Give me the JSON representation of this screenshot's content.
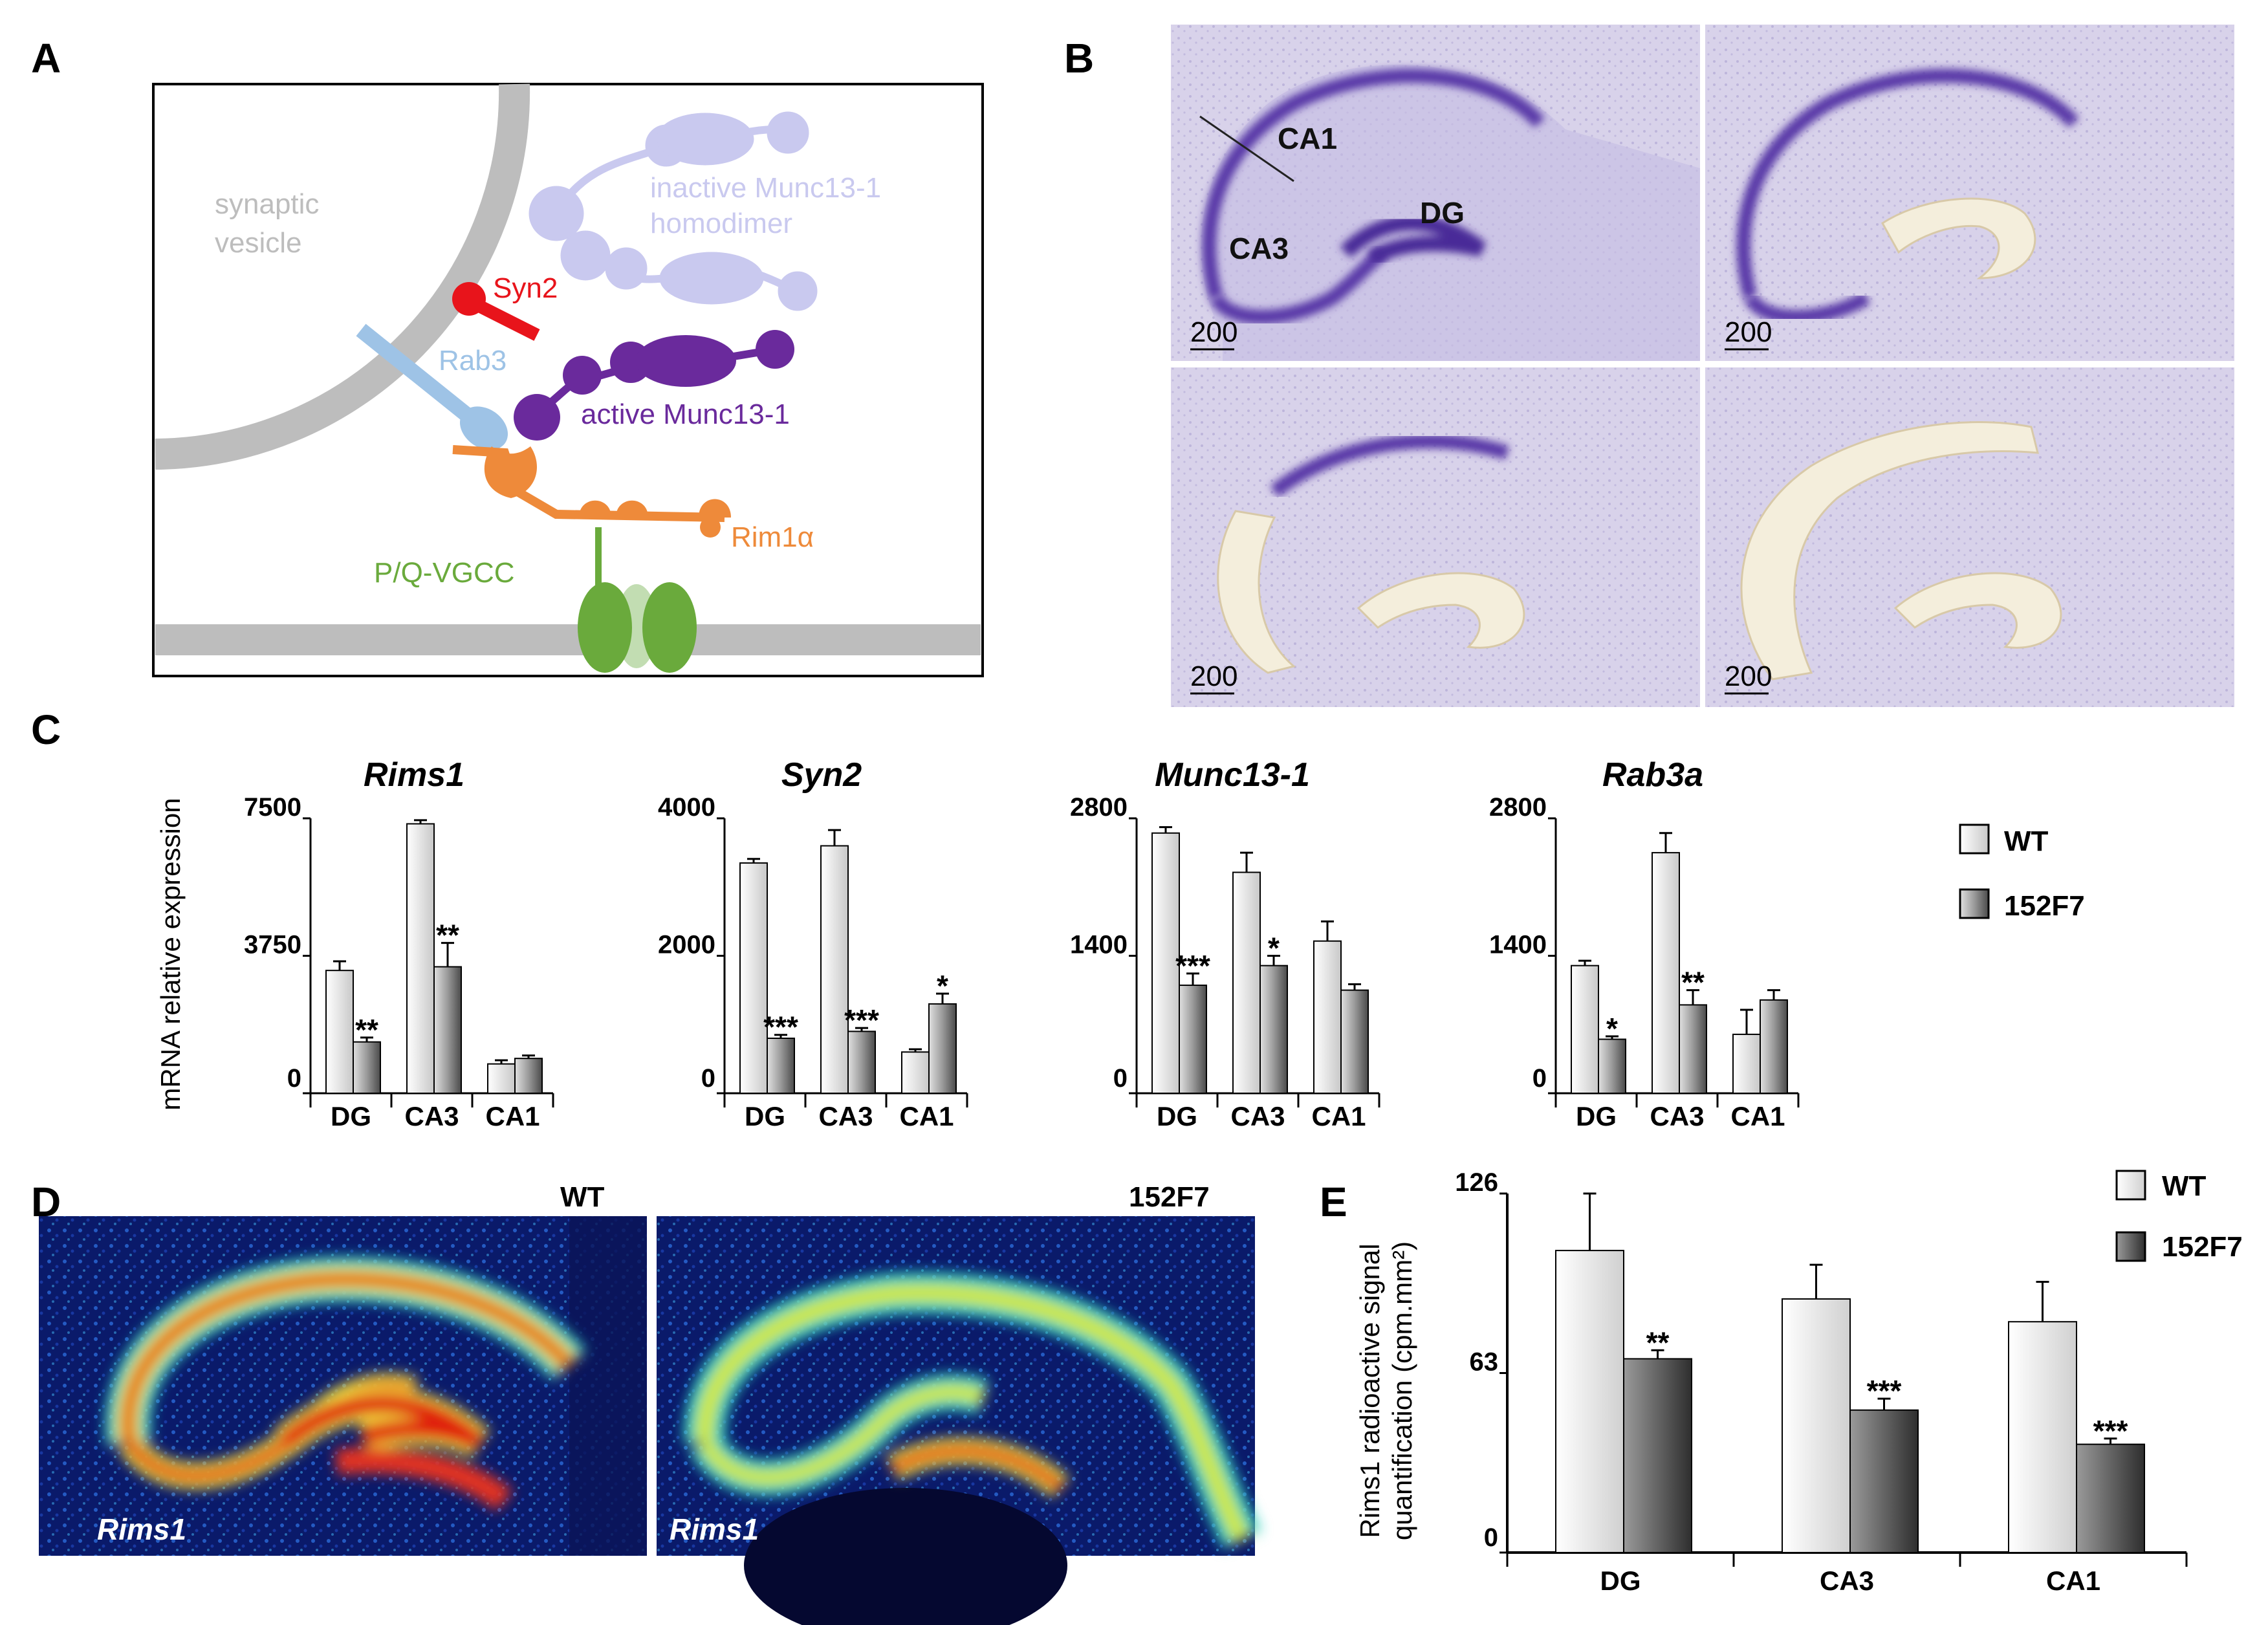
{
  "panel_labels": {
    "a": "A",
    "b": "B",
    "c": "C",
    "d": "D",
    "e": "E"
  },
  "diagram": {
    "synaptic_vesicle": [
      "synaptic",
      "vesicle"
    ],
    "inactive_munc": [
      "inactive Munc13-1",
      "homodimer"
    ],
    "syn2": "Syn2",
    "rab3": "Rab3",
    "active_munc": "active Munc13-1",
    "rim1a": "Rim1α",
    "vgcc": "P/Q-VGCC",
    "colors": {
      "vesicle": "#bdbdbd",
      "inactive": "#c9c9ef",
      "active": "#6a2a9c",
      "syn2": "#e8141b",
      "rab3": "#9ec3e6",
      "rim": "#ee8a3a",
      "vgcc": "#6aaa3c"
    }
  },
  "histology": {
    "regions": {
      "ca1": "CA1",
      "ca3": "CA3",
      "dg": "DG"
    },
    "scale": "200"
  },
  "panel_c": {
    "ylabel": "mRNA relative expression",
    "legend": {
      "wt": "WT",
      "mut": "152F7"
    }
  },
  "panel_d": {
    "wt_title": "WT",
    "mut_title": "152F7",
    "gene_label": "Rims1"
  },
  "panel_e": {
    "ylabel": [
      "Rims1 radioactive signal",
      "quantification (cpm.mm²)"
    ],
    "legend": {
      "wt": "WT",
      "mut": "152F7"
    }
  },
  "chart_data": [
    {
      "type": "bar",
      "title": "Rims1",
      "categories": [
        "DG",
        "CA3",
        "CA1"
      ],
      "yticks": [
        "7500",
        "3750",
        "0"
      ],
      "ylim": [
        0,
        7500
      ],
      "series": [
        {
          "name": "WT",
          "values": [
            3350,
            7350,
            800
          ],
          "errors": [
            250,
            100,
            100
          ]
        },
        {
          "name": "152F7",
          "values": [
            1400,
            3450,
            950
          ],
          "errors": [
            120,
            650,
            80
          ]
        }
      ],
      "significance": [
        "**",
        "**",
        ""
      ]
    },
    {
      "type": "bar",
      "title": "Syn2",
      "categories": [
        "DG",
        "CA3",
        "CA1"
      ],
      "yticks": [
        "4000",
        "2000",
        "0"
      ],
      "ylim": [
        0,
        4000
      ],
      "series": [
        {
          "name": "WT",
          "values": [
            3350,
            3600,
            600
          ],
          "errors": [
            60,
            230,
            40
          ]
        },
        {
          "name": "152F7",
          "values": [
            800,
            900,
            1300
          ],
          "errors": [
            50,
            50,
            150
          ]
        }
      ],
      "significance": [
        "***",
        "***",
        "*"
      ]
    },
    {
      "type": "bar",
      "title": "Munc13-1",
      "categories": [
        "DG",
        "CA3",
        "CA1"
      ],
      "yticks": [
        "2800",
        "1400",
        "0"
      ],
      "ylim": [
        0,
        2800
      ],
      "series": [
        {
          "name": "WT",
          "values": [
            2650,
            2250,
            1550
          ],
          "errors": [
            60,
            200,
            200
          ]
        },
        {
          "name": "152F7",
          "values": [
            1100,
            1300,
            1050
          ],
          "errors": [
            120,
            100,
            60
          ]
        }
      ],
      "significance": [
        "***",
        "*",
        ""
      ]
    },
    {
      "type": "bar",
      "title": "Rab3a",
      "categories": [
        "DG",
        "CA3",
        "CA1"
      ],
      "yticks": [
        "2800",
        "1400",
        "0"
      ],
      "ylim": [
        0,
        2800
      ],
      "series": [
        {
          "name": "WT",
          "values": [
            1300,
            2450,
            600
          ],
          "errors": [
            50,
            200,
            250
          ]
        },
        {
          "name": "152F7",
          "values": [
            550,
            900,
            950
          ],
          "errors": [
            30,
            150,
            100
          ]
        }
      ],
      "significance": [
        "*",
        "**",
        ""
      ]
    },
    {
      "type": "bar",
      "title": "",
      "categories": [
        "DG",
        "CA3",
        "CA1"
      ],
      "yticks": [
        "126",
        "63",
        "0"
      ],
      "ylim": [
        0,
        126
      ],
      "series": [
        {
          "name": "WT",
          "values": [
            106,
            89,
            81
          ],
          "errors": [
            20,
            12,
            14
          ]
        },
        {
          "name": "152F7",
          "values": [
            68,
            50,
            38
          ],
          "errors": [
            3,
            4,
            2
          ]
        }
      ],
      "significance": [
        "**",
        "***",
        "***"
      ]
    }
  ]
}
